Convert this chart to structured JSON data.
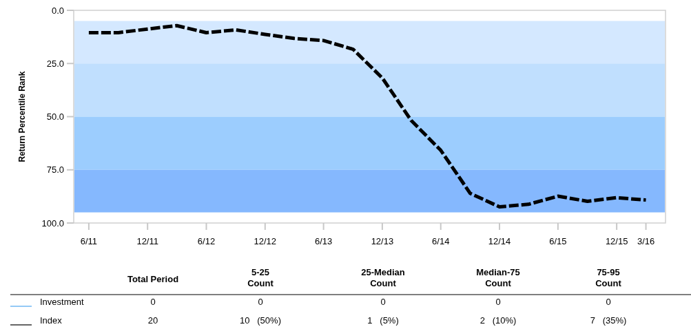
{
  "chart_data": {
    "type": "line",
    "ylabel": "Return Percentile Rank",
    "x": [
      "2011-06",
      "2011-09",
      "2011-12",
      "2012-03",
      "2012-06",
      "2012-09",
      "2012-12",
      "2013-03",
      "2013-06",
      "2013-09",
      "2013-12",
      "2014-03",
      "2014-06",
      "2014-09",
      "2014-12",
      "2015-03",
      "2015-06",
      "2015-09",
      "2015-12",
      "2016-03"
    ],
    "series": [
      {
        "name": "Investment",
        "color": "#4da6f0",
        "values": [
          null,
          null,
          null,
          null,
          null,
          null,
          null,
          null,
          null,
          null,
          null,
          null,
          null,
          null,
          null,
          null,
          null,
          null,
          null,
          null
        ]
      },
      {
        "name": "Index",
        "color": "#000000",
        "line_style": "dashed",
        "values": [
          10.5,
          10.5,
          8.8,
          7.2,
          10.5,
          9.2,
          11.3,
          13.2,
          14.2,
          18.3,
          31.8,
          51.8,
          65.8,
          86.1,
          92.4,
          91.2,
          87.4,
          89.8,
          88.1,
          89.2
        ]
      }
    ],
    "xlim": [
      "2011-04-15",
      "2016-05-01"
    ],
    "xticks": [
      {
        "value": "2011-06",
        "label": "6/11"
      },
      {
        "value": "2011-12",
        "label": "12/11"
      },
      {
        "value": "2012-06",
        "label": "6/12"
      },
      {
        "value": "2012-12",
        "label": "12/12"
      },
      {
        "value": "2013-06",
        "label": "6/13"
      },
      {
        "value": "2013-12",
        "label": "12/13"
      },
      {
        "value": "2014-06",
        "label": "6/14"
      },
      {
        "value": "2014-12",
        "label": "12/14"
      },
      {
        "value": "2015-06",
        "label": "6/15"
      },
      {
        "value": "2015-12",
        "label": "12/15"
      },
      {
        "value": "2016-03",
        "label": "3/16"
      }
    ],
    "ylim": [
      100,
      0
    ],
    "yticks": [
      {
        "value": 0,
        "label": "0.0"
      },
      {
        "value": 25,
        "label": "25.0"
      },
      {
        "value": 50,
        "label": "50.0"
      },
      {
        "value": 75,
        "label": "75.0"
      },
      {
        "value": 100,
        "label": "100.0"
      }
    ],
    "bands": [
      {
        "axis": "y",
        "from": 5,
        "to": 25,
        "color": "#d4e8ff"
      },
      {
        "axis": "y",
        "from": 25,
        "to": 50,
        "color": "#c0dffe"
      },
      {
        "axis": "y",
        "from": 50,
        "to": 75,
        "color": "#9ccdfe"
      },
      {
        "axis": "y",
        "from": 75,
        "to": 95,
        "color": "#85b8fe"
      }
    ],
    "grid": false,
    "marker": "none",
    "legend": "bottom",
    "annotations": [
      "Total Period",
      "5-25\nCount",
      "25-Median\nCount",
      "Median-75\nCount",
      "75-95\nCount",
      "0",
      "0",
      "0",
      "0",
      "0",
      "20",
      "10   (50%)",
      "1   (5%)",
      "2   (10%)",
      "7   (35%)"
    ]
  }
}
